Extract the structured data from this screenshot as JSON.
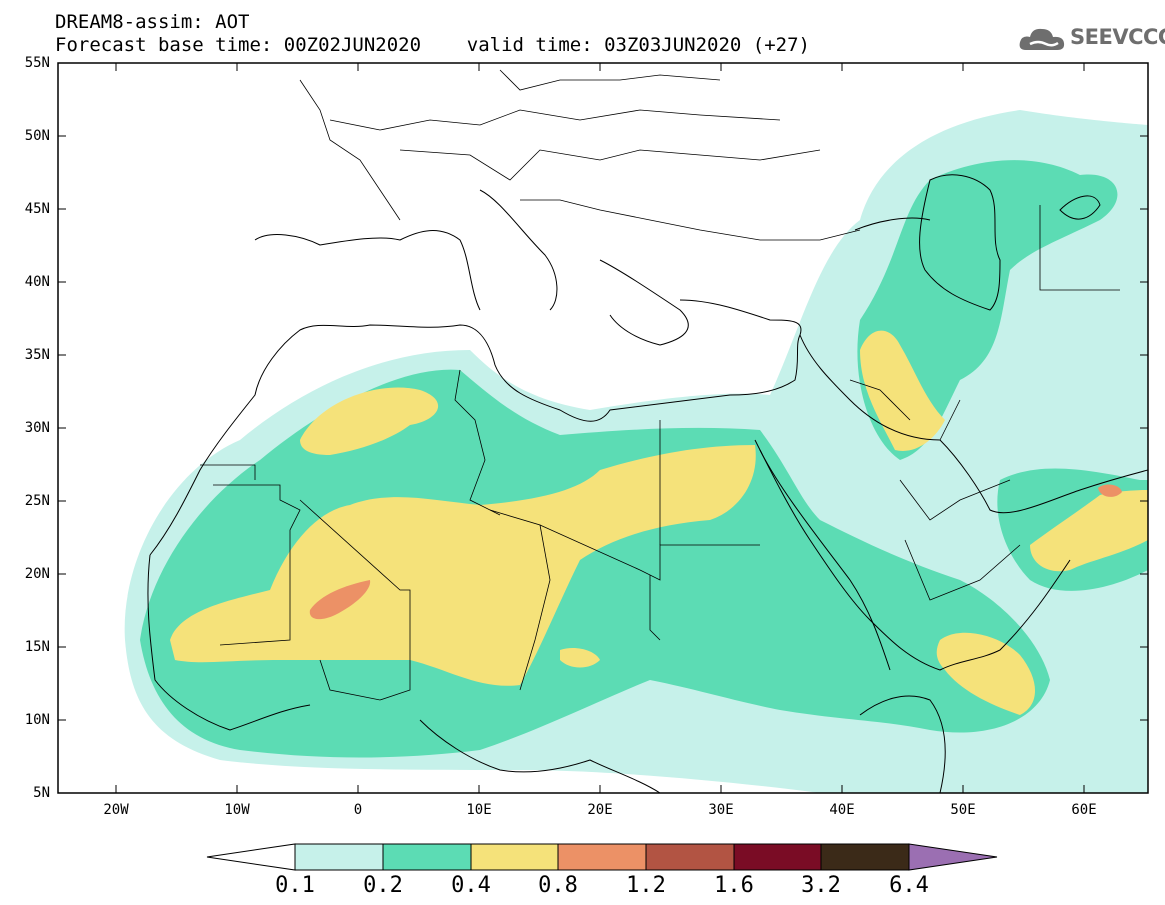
{
  "header": {
    "title_line1": "DREAM8-assim: AOT",
    "title_line2": "Forecast base time: 00Z02JUN2020    valid time: 03Z03JUN2020 (+27)"
  },
  "logo": {
    "text": "SEEVCCC",
    "icon": "cloud-icon"
  },
  "map": {
    "lat_labels": [
      "55N",
      "50N",
      "45N",
      "40N",
      "35N",
      "30N",
      "25N",
      "20N",
      "15N",
      "10N",
      "5N"
    ],
    "lon_labels": [
      "20W",
      "10W",
      "0",
      "10E",
      "20E",
      "30E",
      "40E",
      "50E",
      "60E"
    ]
  },
  "colorbar": {
    "labels": [
      "0.1",
      "0.2",
      "0.4",
      "0.8",
      "1.2",
      "1.6",
      "3.2",
      "6.4"
    ],
    "colors": [
      "#c6f1ea",
      "#5cdcb4",
      "#f5e27a",
      "#ec9166",
      "#b25443",
      "#7a0c25",
      "#3b2a18",
      "#9b6fb2"
    ],
    "under_color": "#ffffff"
  },
  "colors": {
    "frame": "#000000",
    "coast": "#000000"
  }
}
